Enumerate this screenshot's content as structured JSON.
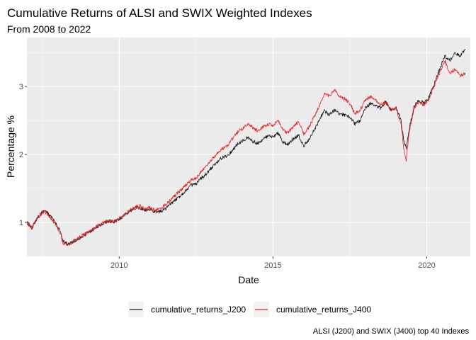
{
  "chart_data": {
    "type": "line",
    "title": "Cumulative Returns of ALSI and SWIX Weighted Indexes",
    "subtitle": "From 2008 to 2022",
    "xlabel": "Date",
    "ylabel": "Percentage %",
    "caption": "ALSI (J200) and SWIX (J400) top 40 Indexes",
    "x_ticks": [
      "2010",
      "2015",
      "2020"
    ],
    "y_ticks": [
      "1",
      "2",
      "3"
    ],
    "xlim": [
      "2007-01",
      "2021-06"
    ],
    "ylim": [
      0.5,
      3.72
    ],
    "grid": true,
    "background": "#EBEBEB",
    "legend_position": "bottom",
    "series": [
      {
        "name": "cumulative_returns_J200",
        "color": "#1a1a1a",
        "points": [
          [
            "2007-01",
            1.0
          ],
          [
            "2007-03",
            0.92
          ],
          [
            "2007-05",
            1.07
          ],
          [
            "2007-07",
            1.15
          ],
          [
            "2007-08",
            1.18
          ],
          [
            "2007-10",
            1.1
          ],
          [
            "2007-12",
            1.0
          ],
          [
            "2008-02",
            0.88
          ],
          [
            "2008-03",
            0.72
          ],
          [
            "2008-05",
            0.68
          ],
          [
            "2008-07",
            0.71
          ],
          [
            "2008-09",
            0.76
          ],
          [
            "2008-11",
            0.8
          ],
          [
            "2009-01",
            0.85
          ],
          [
            "2009-03",
            0.9
          ],
          [
            "2009-05",
            0.95
          ],
          [
            "2009-07",
            0.99
          ],
          [
            "2009-09",
            1.02
          ],
          [
            "2009-11",
            1.0
          ],
          [
            "2010-01",
            1.05
          ],
          [
            "2010-03",
            1.1
          ],
          [
            "2010-05",
            1.16
          ],
          [
            "2010-07",
            1.2
          ],
          [
            "2010-09",
            1.22
          ],
          [
            "2010-11",
            1.18
          ],
          [
            "2011-01",
            1.2
          ],
          [
            "2011-03",
            1.15
          ],
          [
            "2011-05",
            1.16
          ],
          [
            "2011-07",
            1.2
          ],
          [
            "2011-09",
            1.27
          ],
          [
            "2011-11",
            1.33
          ],
          [
            "2012-01",
            1.4
          ],
          [
            "2012-03",
            1.47
          ],
          [
            "2012-05",
            1.55
          ],
          [
            "2012-07",
            1.56
          ],
          [
            "2012-09",
            1.65
          ],
          [
            "2012-11",
            1.72
          ],
          [
            "2013-01",
            1.8
          ],
          [
            "2013-03",
            1.88
          ],
          [
            "2013-05",
            1.95
          ],
          [
            "2013-07",
            1.98
          ],
          [
            "2013-09",
            2.05
          ],
          [
            "2013-11",
            2.15
          ],
          [
            "2014-01",
            2.2
          ],
          [
            "2014-03",
            2.25
          ],
          [
            "2014-05",
            2.2
          ],
          [
            "2014-07",
            2.16
          ],
          [
            "2014-09",
            2.22
          ],
          [
            "2014-11",
            2.27
          ],
          [
            "2015-01",
            2.25
          ],
          [
            "2015-03",
            2.32
          ],
          [
            "2015-05",
            2.17
          ],
          [
            "2015-07",
            2.15
          ],
          [
            "2015-09",
            2.23
          ],
          [
            "2015-11",
            2.28
          ],
          [
            "2016-01",
            2.12
          ],
          [
            "2016-03",
            2.22
          ],
          [
            "2016-05",
            2.35
          ],
          [
            "2016-07",
            2.5
          ],
          [
            "2016-09",
            2.65
          ],
          [
            "2016-11",
            2.58
          ],
          [
            "2017-01",
            2.65
          ],
          [
            "2017-03",
            2.6
          ],
          [
            "2017-05",
            2.58
          ],
          [
            "2017-07",
            2.55
          ],
          [
            "2017-09",
            2.45
          ],
          [
            "2017-11",
            2.5
          ],
          [
            "2018-01",
            2.68
          ],
          [
            "2018-03",
            2.75
          ],
          [
            "2018-05",
            2.72
          ],
          [
            "2018-07",
            2.68
          ],
          [
            "2018-09",
            2.77
          ],
          [
            "2018-11",
            2.65
          ],
          [
            "2019-01",
            2.7
          ],
          [
            "2019-03",
            2.5
          ],
          [
            "2019-04",
            2.2
          ],
          [
            "2019-05",
            2.1
          ],
          [
            "2019-06",
            2.35
          ],
          [
            "2019-08",
            2.7
          ],
          [
            "2019-10",
            2.8
          ],
          [
            "2019-12",
            2.75
          ],
          [
            "2020-02",
            2.85
          ],
          [
            "2020-04",
            3.05
          ],
          [
            "2020-06",
            3.25
          ],
          [
            "2020-08",
            3.45
          ],
          [
            "2020-10",
            3.38
          ],
          [
            "2020-12",
            3.5
          ],
          [
            "2021-02",
            3.45
          ],
          [
            "2021-04",
            3.55
          ]
        ]
      },
      {
        "name": "cumulative_returns_J400",
        "color": "#e8201c",
        "points": [
          [
            "2007-01",
            1.0
          ],
          [
            "2007-03",
            0.91
          ],
          [
            "2007-05",
            1.06
          ],
          [
            "2007-07",
            1.14
          ],
          [
            "2007-08",
            1.16
          ],
          [
            "2007-10",
            1.08
          ],
          [
            "2007-12",
            0.98
          ],
          [
            "2008-02",
            0.85
          ],
          [
            "2008-03",
            0.7
          ],
          [
            "2008-05",
            0.66
          ],
          [
            "2008-07",
            0.72
          ],
          [
            "2008-09",
            0.77
          ],
          [
            "2008-11",
            0.82
          ],
          [
            "2009-01",
            0.86
          ],
          [
            "2009-03",
            0.91
          ],
          [
            "2009-05",
            0.96
          ],
          [
            "2009-07",
            1.0
          ],
          [
            "2009-09",
            1.03
          ],
          [
            "2009-11",
            1.01
          ],
          [
            "2010-01",
            1.06
          ],
          [
            "2010-03",
            1.11
          ],
          [
            "2010-05",
            1.17
          ],
          [
            "2010-07",
            1.22
          ],
          [
            "2010-09",
            1.24
          ],
          [
            "2010-11",
            1.2
          ],
          [
            "2011-01",
            1.22
          ],
          [
            "2011-03",
            1.18
          ],
          [
            "2011-05",
            1.2
          ],
          [
            "2011-07",
            1.26
          ],
          [
            "2011-09",
            1.33
          ],
          [
            "2011-11",
            1.4
          ],
          [
            "2012-01",
            1.47
          ],
          [
            "2012-03",
            1.55
          ],
          [
            "2012-05",
            1.62
          ],
          [
            "2012-07",
            1.65
          ],
          [
            "2012-09",
            1.75
          ],
          [
            "2012-11",
            1.83
          ],
          [
            "2013-01",
            1.92
          ],
          [
            "2013-03",
            2.0
          ],
          [
            "2013-05",
            2.08
          ],
          [
            "2013-07",
            2.12
          ],
          [
            "2013-09",
            2.22
          ],
          [
            "2013-11",
            2.32
          ],
          [
            "2014-01",
            2.38
          ],
          [
            "2014-03",
            2.45
          ],
          [
            "2014-05",
            2.4
          ],
          [
            "2014-07",
            2.35
          ],
          [
            "2014-09",
            2.4
          ],
          [
            "2014-11",
            2.45
          ],
          [
            "2015-01",
            2.43
          ],
          [
            "2015-03",
            2.5
          ],
          [
            "2015-05",
            2.35
          ],
          [
            "2015-07",
            2.32
          ],
          [
            "2015-09",
            2.42
          ],
          [
            "2015-11",
            2.48
          ],
          [
            "2016-01",
            2.3
          ],
          [
            "2016-03",
            2.4
          ],
          [
            "2016-05",
            2.55
          ],
          [
            "2016-07",
            2.7
          ],
          [
            "2016-09",
            2.9
          ],
          [
            "2016-11",
            2.85
          ],
          [
            "2017-01",
            2.95
          ],
          [
            "2017-03",
            2.85
          ],
          [
            "2017-05",
            2.82
          ],
          [
            "2017-07",
            2.75
          ],
          [
            "2017-09",
            2.6
          ],
          [
            "2017-11",
            2.65
          ],
          [
            "2018-01",
            2.8
          ],
          [
            "2018-03",
            2.85
          ],
          [
            "2018-05",
            2.8
          ],
          [
            "2018-07",
            2.72
          ],
          [
            "2018-09",
            2.78
          ],
          [
            "2018-11",
            2.65
          ],
          [
            "2019-01",
            2.68
          ],
          [
            "2019-03",
            2.45
          ],
          [
            "2019-04",
            2.1
          ],
          [
            "2019-05",
            1.9
          ],
          [
            "2019-06",
            2.3
          ],
          [
            "2019-08",
            2.68
          ],
          [
            "2019-10",
            2.78
          ],
          [
            "2019-12",
            2.72
          ],
          [
            "2020-02",
            2.82
          ],
          [
            "2020-04",
            3.02
          ],
          [
            "2020-06",
            3.2
          ],
          [
            "2020-08",
            3.38
          ],
          [
            "2020-10",
            3.2
          ],
          [
            "2020-12",
            3.25
          ],
          [
            "2021-02",
            3.15
          ],
          [
            "2021-04",
            3.2
          ]
        ]
      }
    ]
  }
}
